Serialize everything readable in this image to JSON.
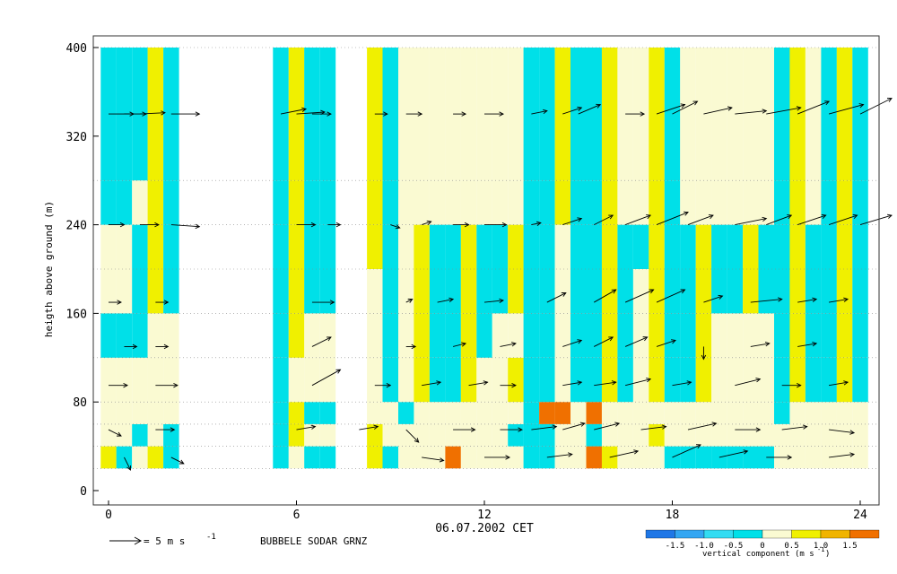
{
  "chart_data": {
    "type": "heatmap",
    "title": "BUBBELE SODAR GRNZ",
    "xlabel": "06.07.2002 CET",
    "ylabel": "heigth above ground (m)",
    "xlim": [
      -0.5,
      24.5
    ],
    "ylim": [
      -10,
      410
    ],
    "x_ticks": [
      0,
      6,
      12,
      18,
      24
    ],
    "y_ticks": [
      0,
      80,
      160,
      240,
      320,
      400
    ],
    "grid": "dotted horizontal lines at heights 20, 40, 60, 80, 120, 160, 200, 240, 280, 400",
    "wind_scale": {
      "label": "= 5 m s",
      "exp": "-1",
      "speed": 5
    },
    "colorbar": {
      "title": "vertical component (m s",
      "title_exp": "-1",
      "title_close": ")",
      "bounds": [
        -2.0,
        -1.5,
        -1.0,
        -0.5,
        0,
        0.5,
        1.0,
        1.5,
        2.0
      ],
      "tick_labels": [
        "-1.5",
        "-1.0",
        "-0.5",
        "0",
        "0.5",
        "1.0",
        "1.5"
      ],
      "colors": {
        "blue": "#1f77e6",
        "lightblue": "#33a6f2",
        "cyan": "#33dcf2",
        "teal": "#00e0e8",
        "paleyellow": "#fafad2",
        "yellow": "#f0f000",
        "orange": "#f0b400",
        "darkorange": "#f07000"
      }
    },
    "series": [
      {
        "x": 0.0,
        "z": [
          1,
          1,
          0,
          0,
          0,
          -1,
          0,
          0,
          -1,
          -1
        ]
      },
      {
        "x": 0.5,
        "z": [
          1,
          1,
          0,
          0,
          0,
          -1,
          0,
          0,
          -1,
          -1
        ]
      },
      {
        "x": 1.0,
        "z": [
          0,
          0,
          1,
          0,
          0,
          -1,
          -1,
          1,
          0,
          -1
        ]
      },
      {
        "x": 1.5,
        "z": [
          0,
          1,
          0,
          0,
          0,
          0,
          1,
          1,
          1,
          1
        ]
      },
      {
        "x": 2.0,
        "z": [
          -1,
          1,
          1,
          0,
          0,
          0,
          1,
          1,
          1,
          1
        ]
      },
      {
        "x": 5.5,
        "z": [
          1,
          1,
          1,
          1,
          1,
          1,
          1,
          1,
          1,
          1
        ]
      },
      {
        "x": 6.0,
        "z": [
          0,
          0,
          1,
          1,
          0,
          1,
          1,
          1,
          1,
          1
        ]
      },
      {
        "x": 6.5,
        "z": [
          1,
          1,
          0,
          1,
          0,
          0,
          1,
          1,
          -1,
          -1
        ]
      },
      {
        "x": 7.0,
        "z": [
          0,
          1,
          0,
          1,
          0,
          0,
          1,
          1,
          -1,
          -1
        ]
      },
      {
        "x": 8.5,
        "z": [
          1,
          1,
          1,
          0,
          0,
          0,
          0,
          1,
          1,
          1
        ]
      },
      {
        "x": 9.0,
        "z": [
          1,
          1,
          0,
          0,
          1,
          1,
          1,
          1,
          1,
          1
        ]
      },
      {
        "x": 9.5,
        "z": [
          0,
          0,
          0,
          1,
          0,
          0,
          0,
          0,
          0,
          0
        ]
      },
      {
        "x": 10.0,
        "z": [
          1,
          0,
          0,
          0,
          1,
          1,
          1,
          1,
          0,
          0
        ]
      },
      {
        "x": 10.5,
        "z": [
          0,
          0,
          0,
          0,
          1,
          1,
          1,
          1,
          0,
          0
        ]
      },
      {
        "x": 11.0,
        "z": [
          0,
          2,
          0,
          0,
          1,
          1,
          1,
          1,
          0,
          0
        ]
      },
      {
        "x": 11.5,
        "z": [
          1,
          0,
          0,
          0,
          1,
          1,
          1,
          1,
          0,
          0
        ]
      },
      {
        "x": 12.0,
        "z": [
          1,
          0,
          0,
          0,
          0,
          1,
          1,
          1,
          0,
          0
        ]
      },
      {
        "x": 12.5,
        "z": [
          -1,
          0,
          0,
          0,
          0,
          0,
          1,
          1,
          0,
          0
        ]
      },
      {
        "x": 13.0,
        "z": [
          -1,
          0,
          -1,
          0,
          1,
          0,
          1,
          1,
          0,
          0
        ]
      },
      {
        "x": 13.5,
        "z": [
          1,
          1,
          1,
          1,
          1,
          1,
          1,
          1,
          1,
          1
        ]
      },
      {
        "x": 14.0,
        "z": [
          1,
          1,
          1,
          2,
          1,
          1,
          1,
          1,
          1,
          1
        ]
      },
      {
        "x": 14.5,
        "z": [
          0,
          0,
          0,
          2,
          0,
          0,
          0,
          0,
          1,
          1
        ]
      },
      {
        "x": 15.0,
        "z": [
          0,
          0,
          0,
          0,
          1,
          1,
          1,
          1,
          1,
          1
        ]
      },
      {
        "x": 15.5,
        "z": [
          1,
          2,
          1,
          2,
          1,
          1,
          1,
          1,
          1,
          1
        ]
      },
      {
        "x": 16.0,
        "z": [
          1,
          1,
          0,
          0,
          1,
          1,
          1,
          1,
          1,
          1
        ]
      },
      {
        "x": 16.5,
        "z": [
          1,
          0,
          0,
          0,
          1,
          1,
          1,
          1,
          0,
          0
        ]
      },
      {
        "x": 17.0,
        "z": [
          0,
          0,
          0,
          0,
          0,
          0,
          0,
          1,
          0,
          0
        ]
      },
      {
        "x": 17.5,
        "z": [
          0,
          0,
          1,
          0,
          1,
          1,
          1,
          1,
          1,
          1
        ]
      },
      {
        "x": 18.0,
        "z": [
          -1,
          -1,
          0,
          0,
          1,
          1,
          1,
          1,
          1,
          1
        ]
      },
      {
        "x": 18.5,
        "z": [
          -1,
          -1,
          0,
          0,
          1,
          1,
          1,
          1,
          0,
          0
        ]
      },
      {
        "x": 19.0,
        "z": [
          -2,
          -1,
          0,
          0,
          1,
          1,
          1,
          1,
          0,
          0
        ]
      },
      {
        "x": 19.5,
        "z": [
          -1,
          -1,
          0,
          0,
          0,
          0,
          -1,
          -1,
          0,
          0
        ]
      },
      {
        "x": 20.0,
        "z": [
          -1,
          -1,
          0,
          0,
          0,
          0,
          -1,
          -1,
          0,
          0
        ]
      },
      {
        "x": 20.5,
        "z": [
          -1,
          -1,
          0,
          0,
          0,
          0,
          1,
          1,
          0,
          0
        ]
      },
      {
        "x": 21.0,
        "z": [
          -1,
          -1,
          0,
          0,
          0,
          0,
          1,
          1,
          0,
          0
        ]
      },
      {
        "x": 21.5,
        "z": [
          -1,
          0,
          0,
          1,
          1,
          1,
          1,
          1,
          1,
          1
        ]
      },
      {
        "x": 22.0,
        "z": [
          0,
          0,
          0,
          0,
          1,
          1,
          1,
          1,
          1,
          1
        ]
      },
      {
        "x": 22.5,
        "z": [
          0,
          0,
          0,
          0,
          1,
          1,
          1,
          1,
          0,
          0
        ]
      },
      {
        "x": 23.0,
        "z": [
          0,
          0,
          0,
          0,
          1,
          1,
          1,
          1,
          1,
          1
        ]
      },
      {
        "x": 23.5,
        "z": [
          0,
          0,
          0,
          0,
          1,
          1,
          1,
          1,
          1,
          1
        ]
      },
      {
        "x": 24.0,
        "z": [
          0,
          0,
          0,
          0,
          1,
          1,
          1,
          1,
          1,
          1
        ]
      }
    ],
    "height_rows": [
      20,
      40,
      60,
      80,
      120,
      160,
      200,
      240,
      280,
      400
    ],
    "wind_vectors": [
      [
        0,
        340,
        4.0,
        0.0
      ],
      [
        0.5,
        340,
        3.5,
        0.0
      ],
      [
        1,
        340,
        4.0,
        0.2
      ],
      [
        2.0,
        340,
        4.5,
        0.0
      ],
      [
        5.5,
        340,
        4.0,
        0.8
      ],
      [
        6.0,
        340,
        4.5,
        0.3
      ],
      [
        6.5,
        340,
        3.0,
        0.0
      ],
      [
        8.5,
        340,
        2.0,
        0.0
      ],
      [
        9.5,
        340,
        2.5,
        0.0
      ],
      [
        11.0,
        340,
        2.0,
        0.0
      ],
      [
        12.0,
        340,
        3.0,
        0.0
      ],
      [
        13.5,
        340,
        2.5,
        0.5
      ],
      [
        14.5,
        340,
        3.0,
        1.0
      ],
      [
        15.0,
        340,
        3.5,
        1.5
      ],
      [
        16.5,
        340,
        3.0,
        0.0
      ],
      [
        17.5,
        340,
        4.5,
        1.5
      ],
      [
        18.0,
        340,
        4.0,
        2.0
      ],
      [
        19.0,
        340,
        4.5,
        1.0
      ],
      [
        20.0,
        340,
        5.0,
        0.5
      ],
      [
        21.0,
        340,
        5.5,
        1.0
      ],
      [
        22.0,
        340,
        5.0,
        2.0
      ],
      [
        23.0,
        340,
        5.5,
        1.5
      ],
      [
        24.0,
        340,
        5.0,
        2.5
      ],
      [
        0,
        240,
        2.5,
        0.0
      ],
      [
        1,
        240,
        3.0,
        0.0
      ],
      [
        2.0,
        240,
        4.5,
        -0.3
      ],
      [
        6.0,
        240,
        3.0,
        0.0
      ],
      [
        7.0,
        240,
        2.0,
        0.0
      ],
      [
        9.0,
        240,
        1.5,
        -0.5
      ],
      [
        10.0,
        240,
        1.5,
        0.5
      ],
      [
        11.0,
        240,
        2.5,
        0.0
      ],
      [
        12.0,
        240,
        3.5,
        0.0
      ],
      [
        13.5,
        240,
        1.5,
        0.3
      ],
      [
        14.5,
        240,
        3.0,
        1.0
      ],
      [
        15.5,
        240,
        3.0,
        1.5
      ],
      [
        16.5,
        240,
        4.0,
        1.5
      ],
      [
        17.5,
        240,
        5.0,
        2.0
      ],
      [
        18.5,
        240,
        4.0,
        1.5
      ],
      [
        20.0,
        240,
        5.0,
        1.0
      ],
      [
        21.0,
        240,
        4.0,
        1.5
      ],
      [
        22.0,
        240,
        4.5,
        1.5
      ],
      [
        23.0,
        240,
        4.5,
        1.5
      ],
      [
        24.0,
        240,
        5.0,
        1.5
      ],
      [
        0,
        170,
        2.0,
        0.0
      ],
      [
        1.5,
        170,
        2.0,
        0.0
      ],
      [
        6.5,
        170,
        3.5,
        0.0
      ],
      [
        9.5,
        170,
        1.0,
        0.5
      ],
      [
        10.5,
        170,
        2.5,
        0.5
      ],
      [
        12.0,
        170,
        3.0,
        0.3
      ],
      [
        14.0,
        170,
        3.0,
        1.5
      ],
      [
        15.5,
        170,
        3.5,
        2.0
      ],
      [
        16.5,
        170,
        4.5,
        2.0
      ],
      [
        17.5,
        170,
        4.5,
        2.0
      ],
      [
        19.0,
        170,
        3.0,
        1.0
      ],
      [
        20.5,
        170,
        5.0,
        0.5
      ],
      [
        22.0,
        170,
        3.0,
        0.5
      ],
      [
        23.0,
        170,
        3.0,
        0.5
      ],
      [
        0.5,
        130,
        2.0,
        0.0
      ],
      [
        1.5,
        130,
        2.0,
        0.0
      ],
      [
        6.5,
        130,
        3.0,
        1.5
      ],
      [
        9.5,
        130,
        1.5,
        0.0
      ],
      [
        11.0,
        130,
        2.0,
        0.5
      ],
      [
        12.5,
        130,
        2.5,
        0.5
      ],
      [
        14.5,
        130,
        3.0,
        1.0
      ],
      [
        15.5,
        130,
        3.0,
        1.5
      ],
      [
        16.5,
        130,
        3.5,
        1.5
      ],
      [
        17.5,
        130,
        3.0,
        1.0
      ],
      [
        19.0,
        130,
        0.0,
        -2.0
      ],
      [
        20.5,
        130,
        3.0,
        0.5
      ],
      [
        22.0,
        130,
        3.0,
        0.5
      ],
      [
        0,
        95,
        3.0,
        0.0
      ],
      [
        1.5,
        95,
        3.5,
        0.0
      ],
      [
        6.5,
        95,
        4.5,
        2.5
      ],
      [
        8.5,
        95,
        2.5,
        0.0
      ],
      [
        10.0,
        95,
        3.0,
        0.5
      ],
      [
        11.5,
        95,
        3.0,
        0.5
      ],
      [
        12.5,
        95,
        2.5,
        0.0
      ],
      [
        14.5,
        95,
        3.0,
        0.5
      ],
      [
        15.5,
        95,
        3.5,
        0.5
      ],
      [
        16.5,
        95,
        4.0,
        1.0
      ],
      [
        18.0,
        95,
        3.0,
        0.5
      ],
      [
        20.0,
        95,
        4.0,
        1.0
      ],
      [
        21.5,
        95,
        3.0,
        0.0
      ],
      [
        23.0,
        95,
        3.0,
        0.5
      ],
      [
        0,
        55,
        2.0,
        -1.0
      ],
      [
        1.5,
        55,
        3.0,
        0.0
      ],
      [
        6.0,
        55,
        3.0,
        0.5
      ],
      [
        8.0,
        55,
        3.0,
        0.5
      ],
      [
        9.5,
        55,
        2.0,
        -2.0
      ],
      [
        11.0,
        55,
        3.5,
        0.0
      ],
      [
        12.5,
        55,
        3.5,
        0.0
      ],
      [
        13.5,
        55,
        4.0,
        0.5
      ],
      [
        14.5,
        55,
        3.5,
        1.0
      ],
      [
        15.5,
        55,
        4.0,
        1.0
      ],
      [
        17.0,
        55,
        4.0,
        0.5
      ],
      [
        18.5,
        55,
        4.5,
        1.0
      ],
      [
        20.0,
        55,
        4.0,
        0.0
      ],
      [
        21.5,
        55,
        4.0,
        0.5
      ],
      [
        23.0,
        55,
        4.0,
        -0.5
      ],
      [
        0.5,
        30,
        1.0,
        -2.0
      ],
      [
        2.0,
        30,
        2.0,
        -1.0
      ],
      [
        10.0,
        30,
        3.5,
        -0.5
      ],
      [
        12.0,
        30,
        4.0,
        0.0
      ],
      [
        14.0,
        30,
        4.0,
        0.5
      ],
      [
        16.0,
        30,
        4.5,
        1.0
      ],
      [
        18.0,
        30,
        4.5,
        2.0
      ],
      [
        19.5,
        30,
        4.5,
        1.0
      ],
      [
        21.0,
        30,
        4.0,
        0.0
      ],
      [
        23.0,
        30,
        4.0,
        0.5
      ]
    ]
  }
}
